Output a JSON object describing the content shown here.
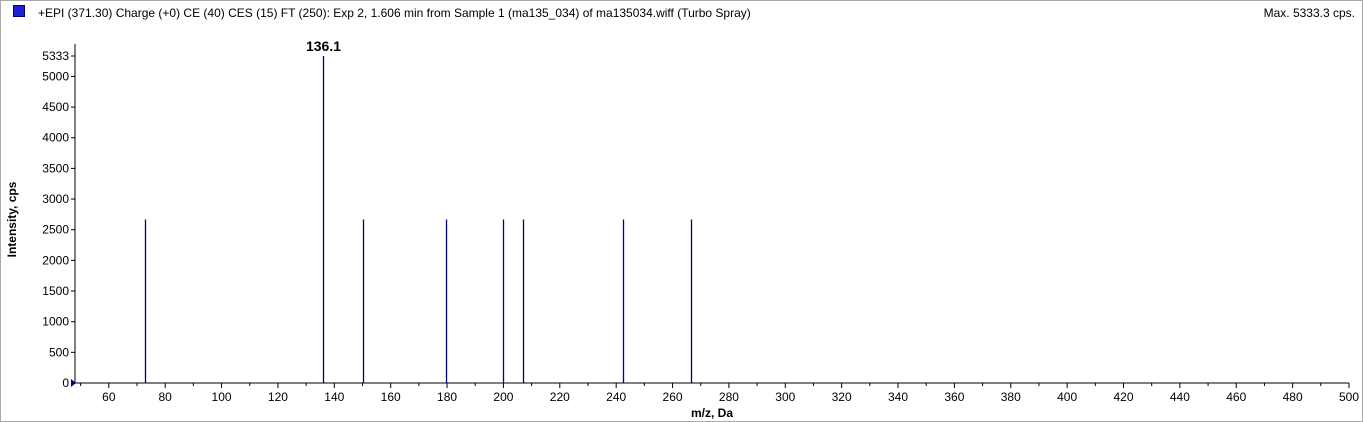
{
  "header": {
    "title": "+EPI (371.30) Charge (+0) CE (40) CES (15) FT (250): Exp 2, 1.606 min from Sample 1 (ma135_034) of ma135034.wiff (Turbo Spray)",
    "max_label": "Max. 5333.3 cps."
  },
  "colors": {
    "series": "#00008b",
    "legend_swatch": "#1f1fd6"
  },
  "chart_data": {
    "type": "bar",
    "xlabel": "m/z, Da",
    "ylabel": "Intensity, cps",
    "xlim": [
      48,
      500
    ],
    "ylim": [
      0,
      5333
    ],
    "x_ticks": [
      "60",
      "80",
      "100",
      "120",
      "140",
      "160",
      "180",
      "200",
      "220",
      "240",
      "260",
      "280",
      "300",
      "320",
      "340",
      "360",
      "380",
      "400",
      "420",
      "440",
      "460",
      "480",
      "500"
    ],
    "y_ticks": [
      "0",
      "500",
      "1000",
      "1500",
      "2000",
      "2500",
      "3000",
      "3500",
      "4000",
      "4500",
      "5000",
      "5333"
    ],
    "peaks": [
      {
        "x": 72.8,
        "y": 2667
      },
      {
        "x": 136.1,
        "y": 5333,
        "label": "136.1"
      },
      {
        "x": 150.1,
        "y": 2667
      },
      {
        "x": 179.8,
        "y": 2667
      },
      {
        "x": 200.0,
        "y": 2667
      },
      {
        "x": 206.8,
        "y": 2667
      },
      {
        "x": 242.4,
        "y": 2667
      },
      {
        "x": 266.5,
        "y": 2667
      }
    ]
  }
}
